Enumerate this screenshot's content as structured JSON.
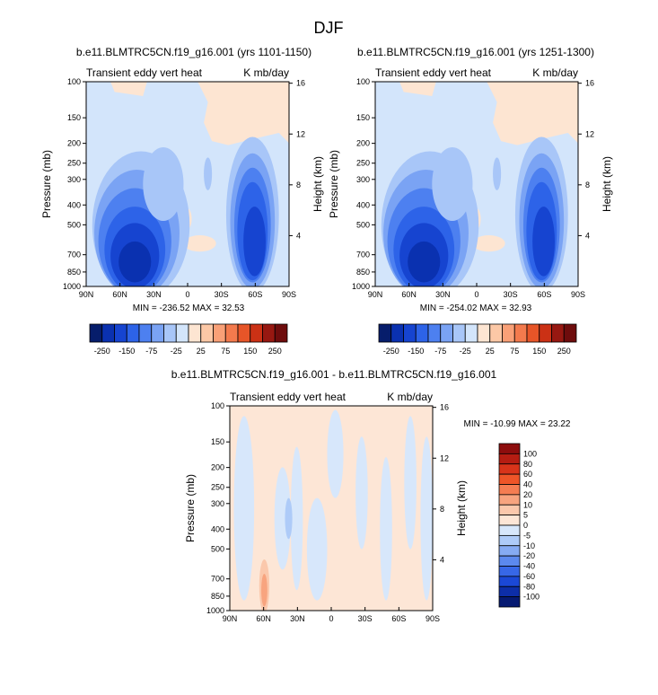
{
  "page_title": "DJF",
  "chart_data": [
    {
      "id": "panel1",
      "type": "heatmap",
      "title": "b.e11.BLMTRC5CN.f19_g16.001 (yrs 1101-1150)",
      "left_string": "Transient eddy vert heat",
      "right_string": "K mb/day",
      "xlabel": "",
      "ylabel": "Pressure (mb)",
      "ylabel_right": "Height (km)",
      "x_ticks": [
        "90N",
        "60N",
        "30N",
        "0",
        "30S",
        "60S",
        "90S"
      ],
      "y_ticks": [
        "100",
        "150",
        "200",
        "250",
        "300",
        "400",
        "500",
        "700",
        "850",
        "1000"
      ],
      "y_right_ticks": [
        "16",
        "12",
        "8",
        "4"
      ],
      "y_scale": "log",
      "ylim": [
        1000,
        100
      ],
      "xlim": [
        90,
        -90
      ],
      "min_max": "MIN = -236.52   MAX = 32.53",
      "levels": [
        "-250",
        "-200",
        "-150",
        "-100",
        "-75",
        "-50",
        "-25",
        "0",
        "25",
        "50",
        "75",
        "100",
        "150",
        "200",
        "250"
      ],
      "colorbar_labels": [
        "-250",
        "-150",
        "-75",
        "-25",
        "25",
        "75",
        "150",
        "250"
      ]
    },
    {
      "id": "panel2",
      "type": "heatmap",
      "title": "b.e11.BLMTRC5CN.f19_g16.001 (yrs 1251-1300)",
      "left_string": "Transient eddy vert heat",
      "right_string": "K mb/day",
      "xlabel": "",
      "ylabel": "Pressure (mb)",
      "ylabel_right": "Height (km)",
      "x_ticks": [
        "90N",
        "60N",
        "30N",
        "0",
        "30S",
        "60S",
        "90S"
      ],
      "y_ticks": [
        "100",
        "150",
        "200",
        "250",
        "300",
        "400",
        "500",
        "700",
        "850",
        "1000"
      ],
      "y_right_ticks": [
        "16",
        "12",
        "8",
        "4"
      ],
      "y_scale": "log",
      "ylim": [
        1000,
        100
      ],
      "xlim": [
        90,
        -90
      ],
      "min_max": "MIN = -254.02   MAX = 32.93",
      "levels": [
        "-250",
        "-200",
        "-150",
        "-100",
        "-75",
        "-50",
        "-25",
        "0",
        "25",
        "50",
        "75",
        "100",
        "150",
        "200",
        "250"
      ],
      "colorbar_labels": [
        "-250",
        "-150",
        "-75",
        "-25",
        "25",
        "75",
        "150",
        "250"
      ]
    },
    {
      "id": "panel3",
      "type": "heatmap",
      "title": "b.e11.BLMTRC5CN.f19_g16.001 - b.e11.BLMTRC5CN.f19_g16.001",
      "left_string": "Transient eddy vert heat",
      "right_string": "K mb/day",
      "xlabel": "",
      "ylabel": "Pressure (mb)",
      "ylabel_right": "Height (km)",
      "x_ticks": [
        "90N",
        "60N",
        "30N",
        "0",
        "30S",
        "60S",
        "90S"
      ],
      "y_ticks": [
        "100",
        "150",
        "200",
        "250",
        "300",
        "400",
        "500",
        "700",
        "850",
        "1000"
      ],
      "y_right_ticks": [
        "16",
        "12",
        "8",
        "4"
      ],
      "y_scale": "log",
      "ylim": [
        1000,
        100
      ],
      "xlim": [
        90,
        -90
      ],
      "min_max": "MIN = -10.99   MAX = 23.22",
      "colorbar_labels": [
        "100",
        "80",
        "60",
        "40",
        "20",
        "10",
        "5",
        "0",
        "-5",
        "-10",
        "-20",
        "-40",
        "-60",
        "-80",
        "-100"
      ]
    }
  ],
  "colors": {
    "colorbar_top": [
      "#061d6b",
      "#0a31b0",
      "#1644d0",
      "#2d63e8",
      "#4d80f0",
      "#7aa3f4",
      "#a8c6f8",
      "#d3e5fb",
      "#fde5d2",
      "#fcc8a6",
      "#f9a077",
      "#f37a4d",
      "#e75528",
      "#cb3115",
      "#971811",
      "#6e0c0c"
    ],
    "colorbar_diff": [
      "#8d0d0d",
      "#b51d12",
      "#d8341a",
      "#ee5528",
      "#f57d52",
      "#f8a47f",
      "#fbc8ac",
      "#fde6d6",
      "#d7e7fb",
      "#aecbf8",
      "#86abf3",
      "#5c89ee",
      "#3767e7",
      "#1b48d6",
      "#0d2ea8",
      "#061a72"
    ],
    "bg_light_blue": "#d7e7fb",
    "bg_peach": "#fde6d6"
  }
}
